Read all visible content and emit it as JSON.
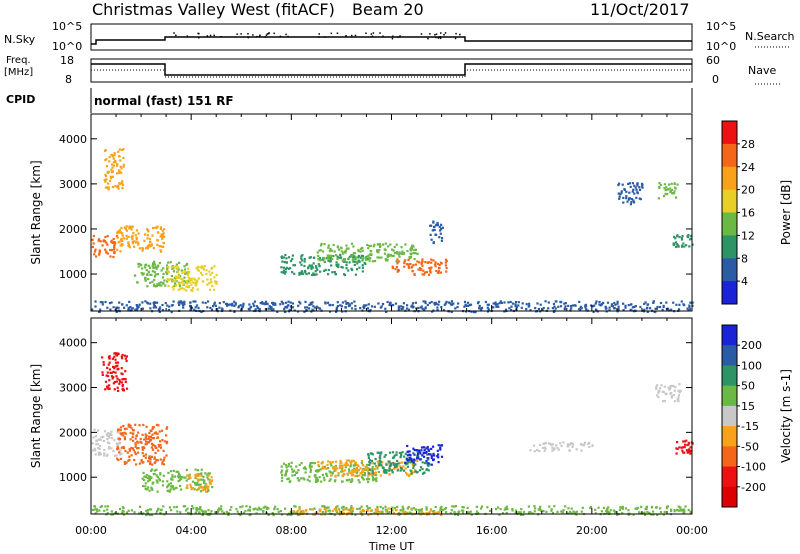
{
  "header": {
    "title": "Christmas Valley West (fitACF)",
    "beam": "Beam 20",
    "date": "11/Oct/2017"
  },
  "strips": {
    "nsky_label": "N.Sky",
    "nsky_ticks": [
      "10^5",
      "10^0"
    ],
    "nsearch_label": "N.Search",
    "freq_label_1": "Freq.",
    "freq_label_2": "[MHz]",
    "freq_ticks": [
      "18",
      "8"
    ],
    "nave_label": "Nave",
    "nave_ticks": [
      "60",
      "0"
    ],
    "cpid_label": "CPID",
    "cpid_value": "normal (fast) 151 RF"
  },
  "chart_data": [
    {
      "type": "heatmap",
      "name": "power-panel",
      "ylabel": "Slant Range [km]",
      "xlabel": "",
      "xlim_hours": [
        0,
        24
      ],
      "ylim_km": [
        180,
        4550
      ],
      "yticks": [
        "1000",
        "2000",
        "3000",
        "4000"
      ],
      "colorbar": {
        "label": "Power [dB]",
        "ticks": [
          "28",
          "24",
          "20",
          "16",
          "12",
          "8",
          "4"
        ],
        "colors": [
          "#ee1111",
          "#f4661a",
          "#f8a21c",
          "#e8cf28",
          "#6cb844",
          "#2e9465",
          "#2a5ca5",
          "#1a24d6"
        ]
      },
      "regions": [
        {
          "t0": 0.0,
          "t1": 1.0,
          "r0": 1400,
          "r1": 1900,
          "c": "#f4661a"
        },
        {
          "t0": 0.5,
          "t1": 1.3,
          "r0": 2900,
          "r1": 3800,
          "c": "#f8a21c"
        },
        {
          "t0": 1.0,
          "t1": 2.9,
          "r0": 1500,
          "r1": 2100,
          "c": "#f8a21c"
        },
        {
          "t0": 1.7,
          "t1": 3.9,
          "r0": 750,
          "r1": 1300,
          "c": "#6cb844"
        },
        {
          "t0": 3.0,
          "t1": 5.0,
          "r0": 650,
          "r1": 1200,
          "c": "#e8cf28"
        },
        {
          "t0": 7.5,
          "t1": 11.0,
          "r0": 1000,
          "r1": 1450,
          "c": "#2e9465"
        },
        {
          "t0": 9.0,
          "t1": 13.0,
          "r0": 1300,
          "r1": 1700,
          "c": "#6cb844"
        },
        {
          "t0": 12.0,
          "t1": 14.2,
          "r0": 1000,
          "r1": 1350,
          "c": "#f4661a"
        },
        {
          "t0": 0.0,
          "t1": 24.0,
          "r0": 180,
          "r1": 420,
          "c": "#2a5ca5"
        },
        {
          "t0": 21.0,
          "t1": 22.0,
          "r0": 2550,
          "r1": 3050,
          "c": "#2a5ca5"
        },
        {
          "t0": 22.6,
          "t1": 23.4,
          "r0": 2700,
          "r1": 3050,
          "c": "#6cb844"
        },
        {
          "t0": 23.2,
          "t1": 24.0,
          "r0": 1600,
          "r1": 1900,
          "c": "#2e9465"
        },
        {
          "t0": 13.5,
          "t1": 14.0,
          "r0": 1700,
          "r1": 2200,
          "c": "#2a5ca5"
        }
      ]
    },
    {
      "type": "heatmap",
      "name": "velocity-panel",
      "ylabel": "Slant Range [km]",
      "xlabel": "Time UT",
      "xlim_hours": [
        0,
        24
      ],
      "ylim_km": [
        180,
        4550
      ],
      "yticks": [
        "1000",
        "2000",
        "3000",
        "4000"
      ],
      "xticks": [
        "00:00",
        "04:00",
        "08:00",
        "12:00",
        "16:00",
        "20:00",
        "00:00"
      ],
      "colorbar": {
        "label": "Velocity [m s-1]",
        "ticks": [
          "200",
          "100",
          "50",
          "15",
          "-15",
          "-50",
          "-100",
          "-200"
        ],
        "colors": [
          "#1a24d6",
          "#2a5ca5",
          "#2e9465",
          "#6cb844",
          "#c8c8c8",
          "#f8a21c",
          "#f4661a",
          "#ee1111",
          "#dd0000"
        ]
      },
      "regions": [
        {
          "t0": 0.0,
          "t1": 1.2,
          "r0": 1500,
          "r1": 2100,
          "c": "#c8c8c8"
        },
        {
          "t0": 0.4,
          "t1": 1.4,
          "r0": 2950,
          "r1": 3800,
          "c": "#ee1111"
        },
        {
          "t0": 1.0,
          "t1": 3.0,
          "r0": 1300,
          "r1": 2200,
          "c": "#f4661a"
        },
        {
          "t0": 2.0,
          "t1": 4.8,
          "r0": 700,
          "r1": 1200,
          "c": "#6cb844"
        },
        {
          "t0": 3.8,
          "t1": 4.8,
          "r0": 700,
          "r1": 1100,
          "c": "#f8a21c"
        },
        {
          "t0": 7.5,
          "t1": 11.5,
          "r0": 900,
          "r1": 1350,
          "c": "#6cb844"
        },
        {
          "t0": 9.0,
          "t1": 13.0,
          "r0": 1050,
          "r1": 1400,
          "c": "#f8a21c"
        },
        {
          "t0": 11.0,
          "t1": 13.5,
          "r0": 1100,
          "r1": 1600,
          "c": "#2e9465"
        },
        {
          "t0": 12.5,
          "t1": 14.0,
          "r0": 1300,
          "r1": 1750,
          "c": "#1a24d6"
        },
        {
          "t0": 0.0,
          "t1": 24.0,
          "r0": 180,
          "r1": 380,
          "c": "#6cb844"
        },
        {
          "t0": 8.0,
          "t1": 14.0,
          "r0": 180,
          "r1": 330,
          "c": "#f8a21c"
        },
        {
          "t0": 22.5,
          "t1": 23.5,
          "r0": 2700,
          "r1": 3100,
          "c": "#c8c8c8"
        },
        {
          "t0": 23.3,
          "t1": 24.0,
          "r0": 1550,
          "r1": 1850,
          "c": "#ee1111"
        },
        {
          "t0": 17.5,
          "t1": 20.0,
          "r0": 1600,
          "r1": 1800,
          "c": "#c8c8c8"
        }
      ]
    }
  ]
}
